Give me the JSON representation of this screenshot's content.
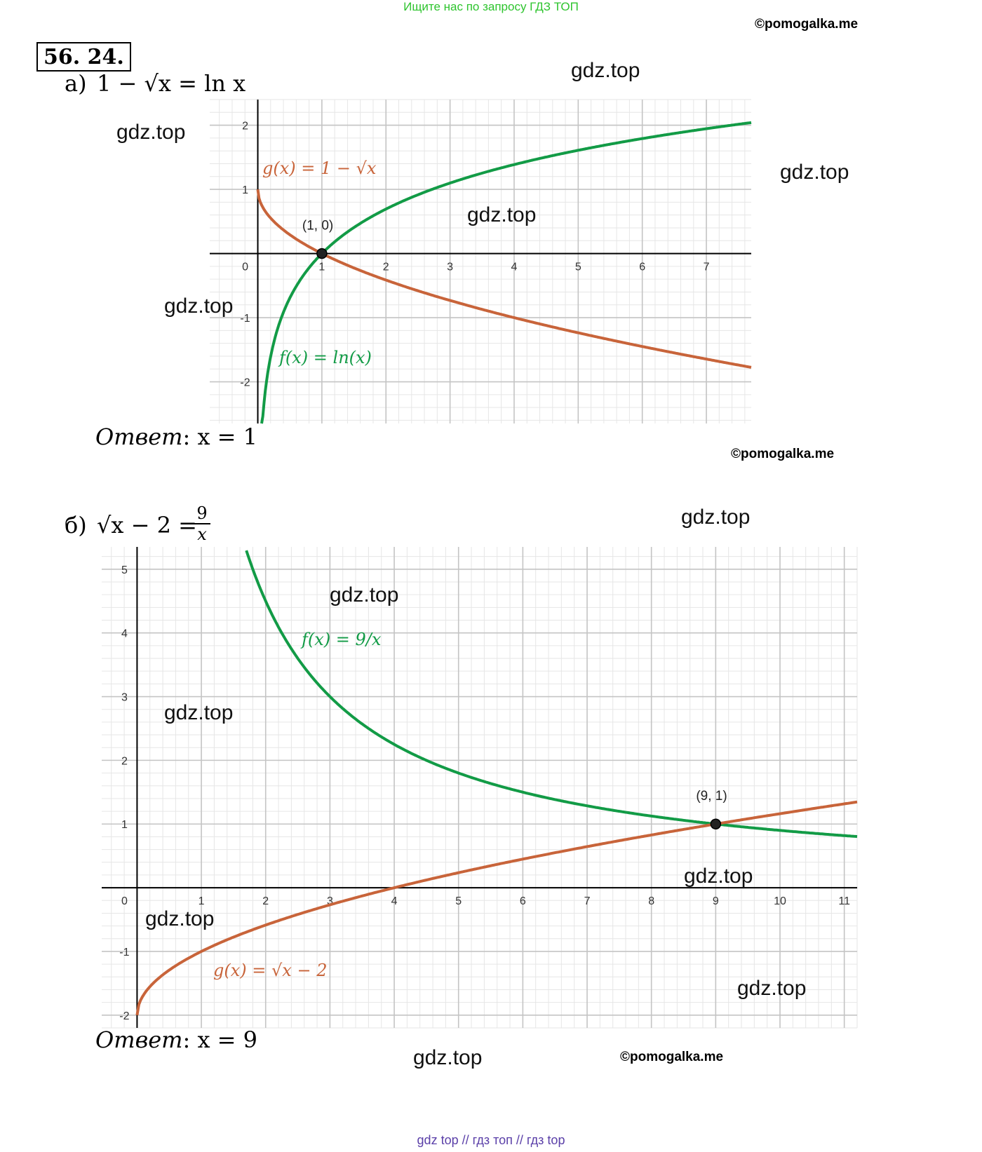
{
  "header": {
    "banner": "Ищите нас по запросу ГДЗ ТОП",
    "copyright": "©pomogalka.me"
  },
  "problem": {
    "number": "56. 24."
  },
  "part_a": {
    "label": "а)",
    "equation": "1 − √x = ln x",
    "answer_prefix": "Ответ",
    "answer_value": ": x = 1",
    "copyright": "©pomogalka.me"
  },
  "part_b": {
    "label": "б)",
    "equation_left": "√x − 2 =",
    "equation_num": "9",
    "equation_den": "x",
    "answer_prefix": "Ответ",
    "answer_value": ": x = 9",
    "copyright": "©pomogalka.me"
  },
  "watermarks": [
    "gdz.top",
    "gdz.top",
    "gdz.top",
    "gdz.top",
    "gdz.top",
    "gdz.top",
    "gdz.top",
    "gdz.top",
    "gdz.top",
    "gdz.top",
    "gdz.top",
    "gdz.top"
  ],
  "footer": "gdz top  //  гдз топ  //  гдз top",
  "colors": {
    "green": "#129b46",
    "orange": "#c8643a",
    "grid_major": "#c4c4c4",
    "grid_minor": "#e6e6e6"
  },
  "chart_data": [
    {
      "type": "line",
      "xlim": [
        -0.75,
        7.7
      ],
      "ylim": [
        -2.65,
        2.4
      ],
      "grid": true,
      "x_ticks": [
        "1",
        "2",
        "3",
        "4",
        "5",
        "6",
        "7"
      ],
      "y_ticks": [
        "2",
        "1",
        "-1",
        "-2"
      ],
      "origin_label": "0",
      "series": [
        {
          "name": "f(x) = ln(x)",
          "function": "ln(x)",
          "color": "#129b46",
          "domain": [
            0.06,
            7.7
          ]
        },
        {
          "name": "g(x) = 1 − √x",
          "function": "1 - sqrt(x)",
          "color": "#c8643a",
          "domain": [
            0,
            7.7
          ]
        }
      ],
      "points": [
        {
          "x": 1,
          "y": 0,
          "label": "(1, 0)"
        }
      ]
    },
    {
      "type": "line",
      "xlim": [
        -0.55,
        11.2
      ],
      "ylim": [
        -2.2,
        5.35
      ],
      "grid": true,
      "x_ticks": [
        "1",
        "2",
        "3",
        "4",
        "5",
        "6",
        "7",
        "8",
        "9",
        "10",
        "11"
      ],
      "y_ticks": [
        "5",
        "4",
        "3",
        "2",
        "1",
        "-1",
        "-2"
      ],
      "origin_label": "0",
      "series": [
        {
          "name": "f(x) = 9/x",
          "function": "9 / x",
          "color": "#129b46",
          "domain": [
            1.7,
            11.2
          ]
        },
        {
          "name": "g(x) = √x − 2",
          "function": "sqrt(x) - 2",
          "color": "#c8643a",
          "domain": [
            0,
            11.2
          ]
        }
      ],
      "points": [
        {
          "x": 9,
          "y": 1,
          "label": "(9, 1)"
        }
      ]
    }
  ]
}
